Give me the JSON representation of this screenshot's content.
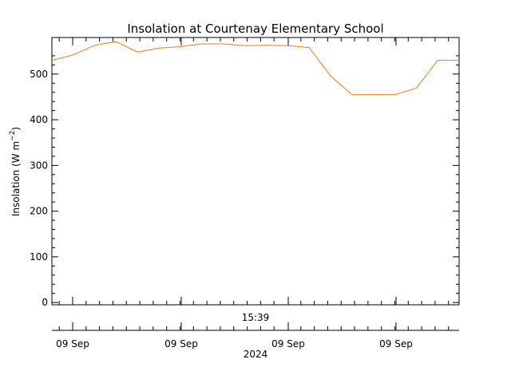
{
  "chart_data": {
    "type": "line",
    "title": "Insolation at Courtenay Elementary School",
    "ylabel": {
      "text": "Insolation (W m",
      "superscript": "−2",
      "close": ")"
    },
    "time_label": "15:39",
    "date_label": "09 Sep",
    "year_label": "2024",
    "ylim": [
      -5,
      580
    ],
    "y_ticks": [
      0,
      100,
      200,
      300,
      400,
      500
    ],
    "y_tick_labels": [
      "0",
      "100",
      "200",
      "300",
      "400",
      "500"
    ],
    "x_tick_labels": [
      "09 Sep",
      "09 Sep",
      "09 Sep",
      "09 Sep"
    ],
    "grid": false,
    "series": [
      {
        "color": "#e87d1e",
        "values": [
          530,
          542,
          563,
          571,
          548,
          557,
          560,
          566,
          566,
          562,
          563,
          562,
          558,
          496,
          455,
          455,
          455,
          469,
          530,
          530
        ]
      }
    ]
  }
}
